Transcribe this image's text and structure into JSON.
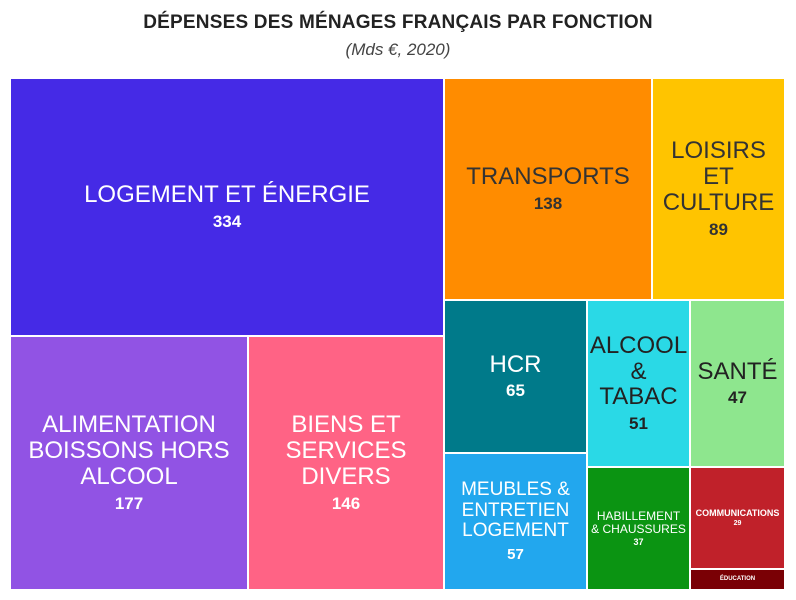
{
  "chart_data": {
    "type": "treemap",
    "title": "DÉPENSES DES MÉNAGES FRANÇAIS PAR FONCTION",
    "subtitle": "(Mds €, 2020)",
    "items": [
      {
        "name": "LOGEMENT ET ÉNERGIE",
        "value": 334,
        "color": "#452ae6",
        "text_color": "#ffffff"
      },
      {
        "name": "ALIMENTATION BOISSONS HORS ALCOOL",
        "value": 177,
        "color": "#9153e4",
        "text_color": "#ffffff"
      },
      {
        "name": "BIENS ET SERVICES DIVERS",
        "value": 146,
        "color": "#ff6385",
        "text_color": "#ffffff"
      },
      {
        "name": "TRANSPORTS",
        "value": 138,
        "color": "#ff8c00",
        "text_color": "#333333"
      },
      {
        "name": "LOISIRS ET CULTURE",
        "value": 89,
        "color": "#ffc400",
        "text_color": "#333333"
      },
      {
        "name": "HCR",
        "value": 65,
        "color": "#007a8a",
        "text_color": "#ffffff"
      },
      {
        "name": "ALCOOL & TABAC",
        "value": 51,
        "color": "#2ad9e6",
        "text_color": "#222222"
      },
      {
        "name": "SANTÉ",
        "value": 47,
        "color": "#8ee68e",
        "text_color": "#222222"
      },
      {
        "name": "MEUBLES & ENTRETIEN LOGEMENT",
        "value": 57,
        "color": "#22a7ee",
        "text_color": "#ffffff"
      },
      {
        "name": "HABILLEMENT & CHAUSSURES",
        "value": 37,
        "color": "#0b9412",
        "text_color": "#ffffff"
      },
      {
        "name": "COMMUNICATIONS",
        "value": 29,
        "color": "#c0212a",
        "text_color": "#ffffff"
      },
      {
        "name": "ÉDUCATION",
        "value": null,
        "color": "#7a0005",
        "text_color": "#ffffff"
      }
    ]
  }
}
